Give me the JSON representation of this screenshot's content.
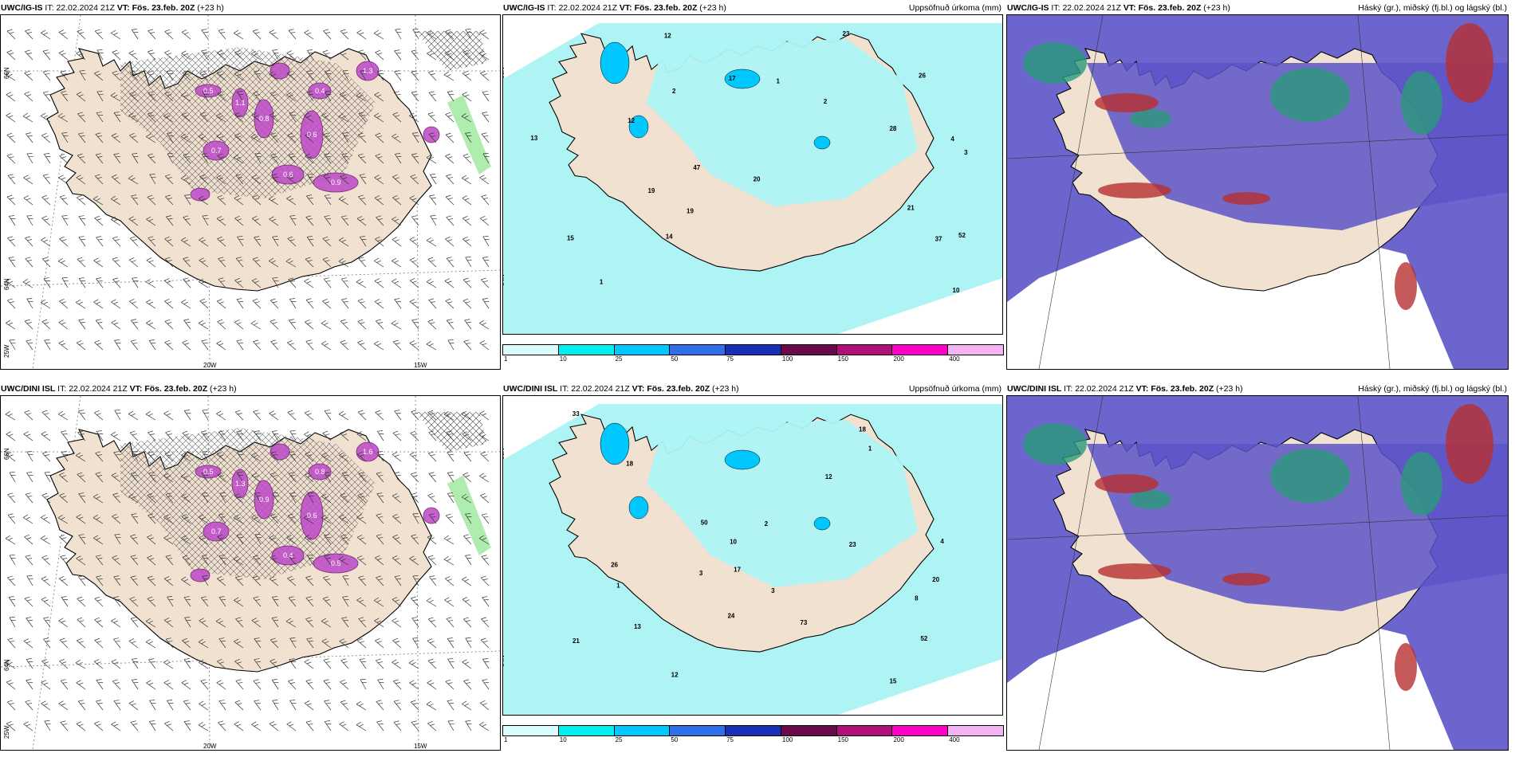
{
  "rows": [
    {
      "model": "UWC/IG-IS",
      "panels": [
        {
          "type": "wind",
          "title_model": "UWC/IG-IS",
          "it_label": "IT:",
          "it_value": "22.02.2024 21Z",
          "vt_label": "VT:",
          "vt_value": "Fös. 23.feb. 20Z",
          "lead": "(+23 h)",
          "right_title": ""
        },
        {
          "type": "precip",
          "title_model": "UWC/IG-IS",
          "it_label": "IT:",
          "it_value": "22.02.2024 21Z",
          "vt_label": "VT:",
          "vt_value": "Fös. 23.feb. 20Z",
          "lead": "(+23 h)",
          "right_title": "Uppsöfnuð úrkoma (mm)"
        },
        {
          "type": "cloud",
          "title_model": "UWC/IG-IS",
          "it_label": "IT:",
          "it_value": "22.02.2024 21Z",
          "vt_label": "VT:",
          "vt_value": "Fös. 23.feb. 20Z",
          "lead": "(+23 h)",
          "right_title": "Háský (gr.), miðský (fj.bl.) og lágský (bl.)"
        }
      ]
    },
    {
      "model": "UWC/DINI ISL",
      "panels": [
        {
          "type": "wind",
          "title_model": "UWC/DINI ISL",
          "it_label": "IT:",
          "it_value": "22.02.2024 21Z",
          "vt_label": "VT:",
          "vt_value": "Fös. 23.feb. 20Z",
          "lead": "(+23 h)",
          "right_title": ""
        },
        {
          "type": "precip",
          "title_model": "UWC/DINI ISL",
          "it_label": "IT:",
          "it_value": "22.02.2024 21Z",
          "vt_label": "VT:",
          "vt_value": "Fös. 23.feb. 20Z",
          "lead": "(+23 h)",
          "right_title": "Uppsöfnuð úrkoma (mm)"
        },
        {
          "type": "cloud",
          "title_model": "UWC/DINI ISL",
          "it_label": "IT:",
          "it_value": "22.02.2024 21Z",
          "vt_label": "VT:",
          "vt_value": "Fös. 23.feb. 20Z",
          "lead": "(+23 h)",
          "right_title": "Háský (gr.), miðský (fj.bl.) og lágský (bl.)"
        }
      ]
    }
  ],
  "axis_labels": {
    "lat_66": "66N",
    "lat_64": "64N",
    "lon_25": "25W",
    "lon_20": "20W",
    "lon_15": "15W"
  },
  "precip_legend": {
    "ticks": [
      "1",
      "10",
      "25",
      "50",
      "75",
      "100",
      "150",
      "200",
      "400"
    ],
    "colors": [
      "#d9fbfb",
      "#00f0f0",
      "#00c8ff",
      "#2f6fe8",
      "#1a2fb8",
      "#6a0a4a",
      "#b0107a",
      "#ff00c8",
      "#f4b4f4"
    ]
  },
  "precip_values_top": [
    "2",
    "4",
    "2",
    "3",
    "47",
    "52",
    "19",
    "23",
    "37",
    "26",
    "12",
    "21",
    "28",
    "14",
    "15",
    "20",
    "19",
    "13",
    "12",
    "17",
    "10",
    "1",
    "1"
  ],
  "precip_values_bottom": [
    "2",
    "4",
    "3",
    "73",
    "50",
    "52",
    "18",
    "26",
    "33",
    "18",
    "12",
    "17",
    "24",
    "21",
    "13",
    "23",
    "20",
    "15",
    "8",
    "12",
    "10",
    "1",
    "1",
    "3"
  ],
  "wind_values_top": [
    "0.5",
    "1.1",
    "0.8",
    "0.6",
    "0.4",
    "1.3",
    "0.7",
    "0.9",
    "0.6"
  ],
  "wind_values_bottom": [
    "0.5",
    "1.3",
    "0.9",
    "0.6",
    "0.8",
    "1.6",
    "0.7",
    "0.5",
    "0.4"
  ],
  "colors": {
    "land": "#f1e1d0",
    "precip_light": "#aef4f4",
    "wind_purple": "#c050c8",
    "cloud_blue": "#5c54c8",
    "cloud_green": "#2a9a7a",
    "cloud_red": "#b83030"
  }
}
